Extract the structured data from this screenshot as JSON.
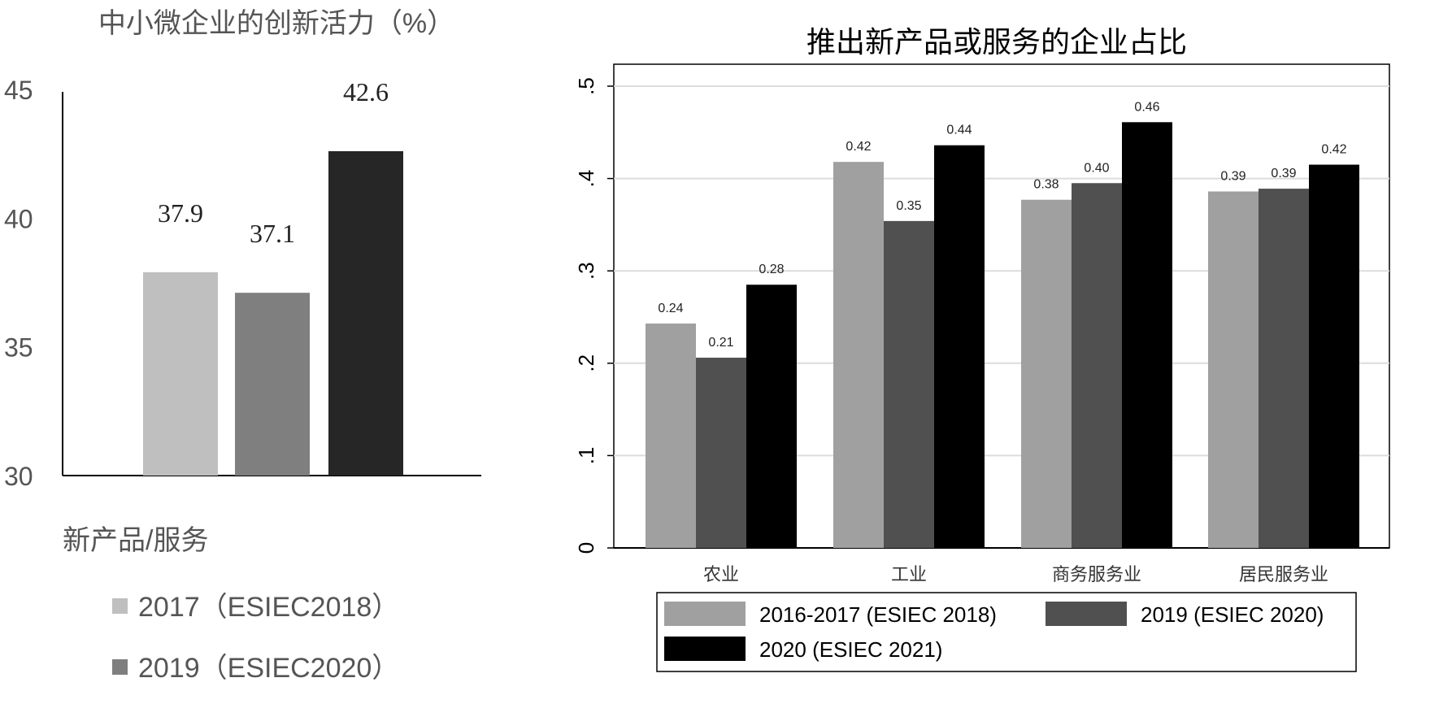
{
  "chart_data": [
    {
      "type": "bar",
      "title": "中小微企业的创新活力（%）",
      "xlabel": "新产品/服务",
      "ylabel": "",
      "ylim": [
        30,
        45
      ],
      "yticks": [
        "30",
        "35",
        "40",
        "45"
      ],
      "grid": false,
      "legend_placement": "bottom",
      "series": [
        {
          "name": "2017（ESIEC2018）",
          "values": [
            37.9
          ],
          "labels": [
            "37.9"
          ],
          "color": "#bfbfbf"
        },
        {
          "name": "2019（ESIEC2020）",
          "values": [
            37.1
          ],
          "labels": [
            "37.1"
          ],
          "color": "#7f7f7f"
        },
        {
          "name": "",
          "values": [
            42.6
          ],
          "labels": [
            "42.6"
          ],
          "color": "#262626"
        }
      ]
    },
    {
      "type": "bar",
      "title": "推出新产品或服务的企业占比",
      "xlabel": "",
      "ylabel": "",
      "ylim": [
        0,
        0.5
      ],
      "yticks": [
        "0",
        ".1",
        ".2",
        ".3",
        ".4",
        ".5"
      ],
      "grid": true,
      "legend_placement": "bottom",
      "categories": [
        "农业",
        "工业",
        "商务服务业",
        "居民服务业"
      ],
      "series": [
        {
          "name": "2016-2017 (ESIEC 2018)",
          "values": [
            0.243,
            0.418,
            0.377,
            0.386
          ],
          "labels": [
            "0.24",
            "0.42",
            "0.38",
            "0.39"
          ],
          "color": "#a0a0a0"
        },
        {
          "name": "2019 (ESIEC 2020)",
          "values": [
            0.206,
            0.354,
            0.395,
            0.389
          ],
          "labels": [
            "0.21",
            "0.35",
            "0.40",
            "0.39"
          ],
          "color": "#505050"
        },
        {
          "name": "2020 (ESIEC 2021)",
          "values": [
            0.285,
            0.436,
            0.461,
            0.415
          ],
          "labels": [
            "0.28",
            "0.44",
            "0.46",
            "0.42"
          ],
          "color": "#000000"
        }
      ]
    }
  ]
}
